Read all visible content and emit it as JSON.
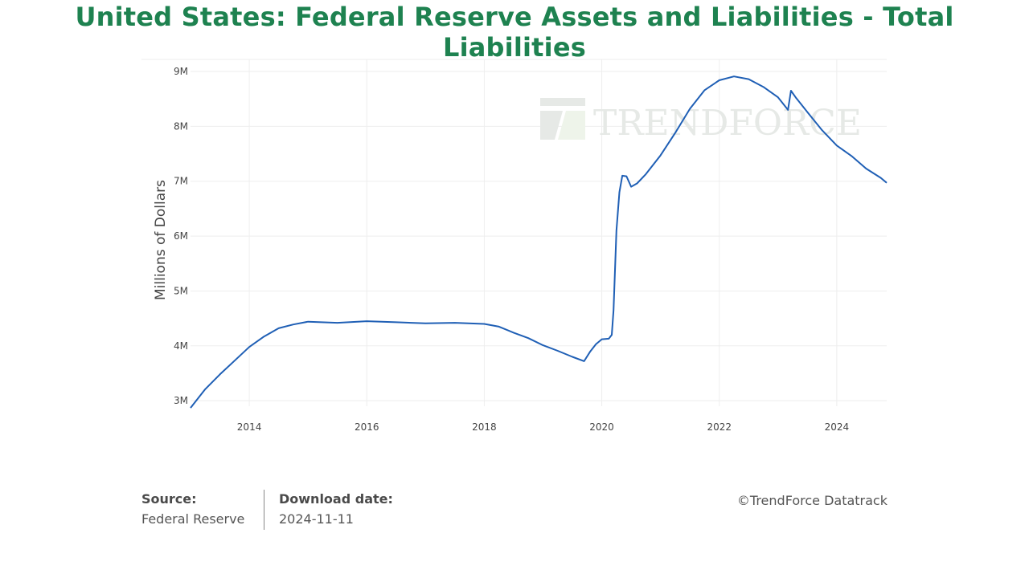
{
  "page": {
    "title": "United States: Federal Reserve Assets and Liabilities - Total Liabilities"
  },
  "watermark": {
    "text": "TrendForce",
    "color": "#e6e9e6"
  },
  "footer": {
    "source_label": "Source:",
    "source_value": "Federal Reserve",
    "download_label": "Download date:",
    "download_value": "2024-11-11",
    "copyright": "©TrendForce Datatrack"
  },
  "colors": {
    "title": "#1e8250",
    "line": "#1f5fb5",
    "grid": "#eeeeee"
  },
  "chart_data": {
    "type": "line",
    "title": "United States: Federal Reserve Assets and Liabilities - Total Liabilities",
    "xlabel": "",
    "ylabel": "Millions of Dollars",
    "xlim": [
      2013.0,
      2024.85
    ],
    "ylim": [
      2900000,
      9220000
    ],
    "x_ticks": [
      2014,
      2016,
      2018,
      2020,
      2022,
      2024
    ],
    "y_ticks": [
      3000000,
      4000000,
      5000000,
      6000000,
      7000000,
      8000000,
      9000000
    ],
    "y_tick_labels": [
      "3M",
      "4M",
      "5M",
      "6M",
      "7M",
      "8M",
      "9M"
    ],
    "grid": true,
    "series": [
      {
        "name": "",
        "x": [
          2013.0,
          2013.25,
          2013.5,
          2013.75,
          2014.0,
          2014.25,
          2014.5,
          2014.75,
          2015.0,
          2015.5,
          2016.0,
          2016.5,
          2017.0,
          2017.5,
          2018.0,
          2018.25,
          2018.5,
          2018.75,
          2019.0,
          2019.25,
          2019.5,
          2019.7,
          2019.8,
          2019.9,
          2020.0,
          2020.12,
          2020.17,
          2020.2,
          2020.25,
          2020.3,
          2020.35,
          2020.42,
          2020.5,
          2020.6,
          2020.75,
          2021.0,
          2021.25,
          2021.5,
          2021.75,
          2022.0,
          2022.25,
          2022.5,
          2022.75,
          2023.0,
          2023.17,
          2023.22,
          2023.3,
          2023.5,
          2023.75,
          2024.0,
          2024.25,
          2024.5,
          2024.75,
          2024.85
        ],
        "y": [
          2870000,
          3210000,
          3480000,
          3730000,
          3980000,
          4170000,
          4320000,
          4390000,
          4440000,
          4420000,
          4450000,
          4430000,
          4410000,
          4420000,
          4400000,
          4350000,
          4240000,
          4140000,
          4010000,
          3910000,
          3800000,
          3720000,
          3890000,
          4030000,
          4120000,
          4130000,
          4200000,
          4650000,
          6100000,
          6800000,
          7100000,
          7090000,
          6900000,
          6960000,
          7130000,
          7470000,
          7880000,
          8320000,
          8660000,
          8840000,
          8910000,
          8860000,
          8720000,
          8530000,
          8300000,
          8650000,
          8530000,
          8260000,
          7930000,
          7650000,
          7460000,
          7230000,
          7060000,
          6970000
        ]
      }
    ]
  }
}
